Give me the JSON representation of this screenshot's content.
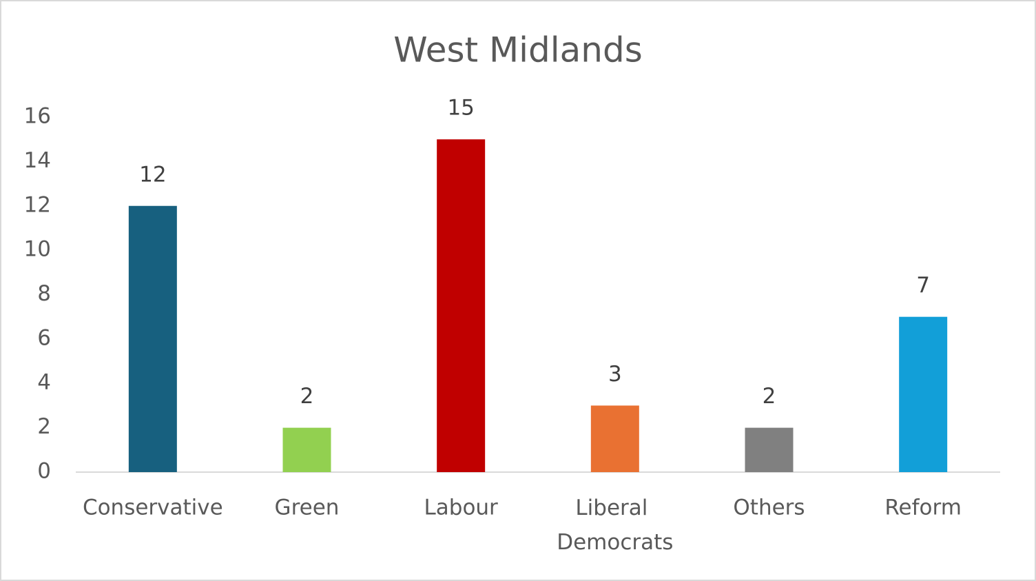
{
  "chart_data": {
    "type": "bar",
    "title": "West Midlands",
    "categories": [
      "Conservative",
      "Green",
      "Labour",
      "Liberal Democrats",
      "Others",
      "Reform"
    ],
    "values": [
      12,
      2,
      15,
      3,
      2,
      7
    ],
    "colors": [
      "#17607f",
      "#92d050",
      "#c00000",
      "#e97132",
      "#808080",
      "#129fd8"
    ],
    "ylim": [
      0,
      16
    ],
    "yticks": [
      0,
      2,
      4,
      6,
      8,
      10,
      12,
      14,
      16
    ],
    "grid": false
  }
}
